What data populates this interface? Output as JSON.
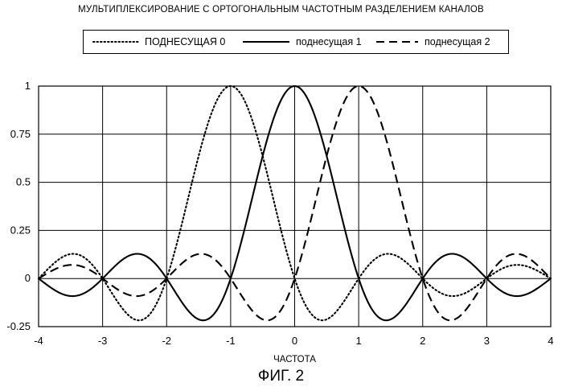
{
  "figure": {
    "title": "МУЛЬТИПЛЕКСИРОВАНИЕ С ОРТОГОНАЛЬНЫМ ЧАСТОТНЫМ РАЗДЕЛЕНИЕМ КАНАЛОВ",
    "caption": "ФИГ. 2"
  },
  "legend": {
    "items": [
      {
        "label": "ПОДНЕСУЩАЯ 0",
        "style": "dotted"
      },
      {
        "label": "поднесущая 1",
        "style": "solid"
      },
      {
        "label": "поднесущая 2",
        "style": "dashed"
      }
    ]
  },
  "chart_data": {
    "type": "line",
    "title": "МУЛЬТИПЛЕКСИРОВАНИЕ С ОРТОГОНАЛЬНЫМ ЧАСТОТНЫМ РАЗДЕЛЕНИЕМ КАНАЛОВ",
    "xlabel": "ЧАСТОТА",
    "ylabel": "",
    "xlim": [
      -4,
      4
    ],
    "ylim": [
      -0.25,
      1
    ],
    "x_ticks": [
      -4,
      -3,
      -2,
      -1,
      0,
      1,
      2,
      3,
      4
    ],
    "x_tick_labels": [
      "-4",
      "-3",
      "-2",
      "-1",
      "0",
      "1",
      "2",
      "3",
      "4"
    ],
    "y_ticks": [
      -0.25,
      0,
      0.25,
      0.5,
      0.75,
      1
    ],
    "y_tick_labels": [
      "-0.25",
      "0",
      "0.25",
      "0.5",
      "0.75",
      "1"
    ],
    "grid": true,
    "legend_position": "top",
    "x": [
      -4,
      -3.5,
      -3,
      -2.5,
      -2,
      -1.5,
      -1,
      -0.5,
      0,
      0.5,
      1,
      1.5,
      2,
      2.5,
      3,
      3.5,
      4
    ],
    "series": [
      {
        "name": "ПОДНЕСУЩАЯ 0",
        "style": "dotted",
        "center": -1,
        "values": [
          0,
          0.13,
          0,
          -0.21,
          0,
          0.64,
          1,
          0.64,
          0,
          -0.21,
          0,
          0.13,
          0,
          -0.09,
          0,
          0.07,
          0
        ]
      },
      {
        "name": "поднесущая 1",
        "style": "solid",
        "center": 0,
        "values": [
          0,
          -0.09,
          0,
          0.13,
          0,
          -0.21,
          0,
          0.64,
          1,
          0.64,
          0,
          -0.21,
          0,
          0.13,
          0,
          -0.09,
          0
        ]
      },
      {
        "name": "поднесущая 2",
        "style": "dashed",
        "center": 1,
        "values": [
          0,
          0.07,
          0,
          -0.09,
          0,
          0.13,
          0,
          -0.21,
          0,
          0.64,
          1,
          0.64,
          0,
          -0.21,
          0,
          0.13,
          0
        ]
      }
    ]
  }
}
